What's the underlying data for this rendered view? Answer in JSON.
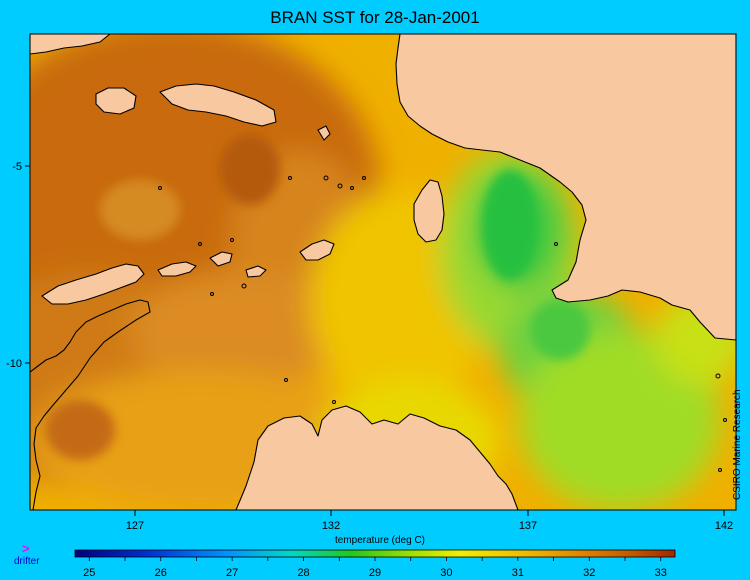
{
  "title": "BRAN SST for 28-Jan-2001",
  "credit": "CSIRO Marine Research",
  "legend": {
    "marker": ">",
    "label": "drifter"
  },
  "x_axis": {
    "label": "temperature (deg C)",
    "ticks": [
      "127",
      "132",
      "137",
      "142"
    ]
  },
  "y_axis": {
    "ticks": [
      "-5",
      "-10"
    ]
  },
  "colorbar": {
    "labels": [
      "25",
      "26",
      "27",
      "28",
      "29",
      "30",
      "31",
      "32",
      "33"
    ],
    "range": [
      24.8,
      33.2
    ]
  },
  "colors": {
    "background": "#00ccff",
    "land": "#f8c8a0",
    "coastline": "#000000",
    "drifter": "#ff00ff"
  }
}
